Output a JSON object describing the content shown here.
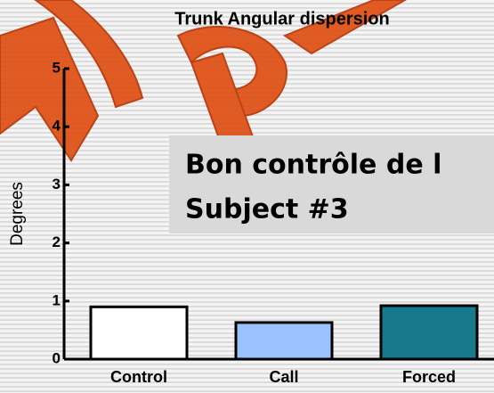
{
  "chart_data": {
    "type": "bar",
    "title": "Trunk Angular dispersion",
    "y_label": "Degrees",
    "categories": [
      "Control",
      "Call",
      "Forced"
    ],
    "values": [
      0.9,
      0.63,
      0.92
    ],
    "colors": [
      "#ffffff",
      "#99c2ff",
      "#177a8c"
    ],
    "ylim": [
      0,
      5
    ],
    "yticks": [
      0,
      1,
      2,
      3,
      4,
      5
    ],
    "grid": false,
    "annotations": [
      "Bon contrôle de l",
      "Subject #3"
    ]
  }
}
